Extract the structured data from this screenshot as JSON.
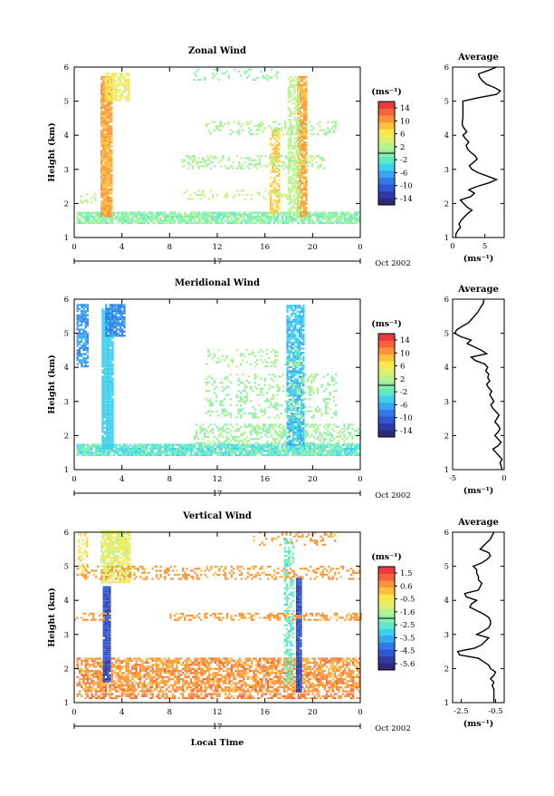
{
  "figure": {
    "xlabel": "Local Time",
    "xticks": [
      "0",
      "4",
      "8",
      "12",
      "16",
      "20",
      "0"
    ],
    "date_label": "17",
    "month_label": "Oct 2002",
    "unit_label": "(ms⁻¹)",
    "colormap": [
      "#2b2b7a",
      "#2e3aa8",
      "#2f57cf",
      "#2f7ae6",
      "#36a6ee",
      "#3fd0ee",
      "#5fe8c8",
      "#8cf0a8",
      "#baf28a",
      "#e0f06a",
      "#fbe64c",
      "#fdc03c",
      "#fb9436",
      "#f6633a",
      "#ea3a3f"
    ]
  },
  "chart_data": [
    {
      "type": "heatmap",
      "title": "Zonal Wind",
      "ylabel": "Height (km)",
      "xlim": [
        0,
        24
      ],
      "ylim": [
        1,
        6
      ],
      "yticks": [
        "1",
        "2",
        "3",
        "4",
        "5",
        "6"
      ],
      "colorbar": {
        "min": -15,
        "max": 15,
        "ticks": [
          "14",
          "10",
          "6",
          "2",
          "-2",
          "-6",
          "-10",
          "-14"
        ]
      },
      "profile": {
        "title": "Average",
        "xlim": [
          0,
          8
        ],
        "xticks": [
          "0",
          "5"
        ],
        "y": [
          1.0,
          1.1,
          1.2,
          1.3,
          1.4,
          1.5,
          1.6,
          1.7,
          1.8,
          1.9,
          2.0,
          2.1,
          2.2,
          2.3,
          2.4,
          2.5,
          2.6,
          2.7,
          2.8,
          2.9,
          3.0,
          3.1,
          3.2,
          3.3,
          3.4,
          3.5,
          3.6,
          3.7,
          3.8,
          3.9,
          4.0,
          4.1,
          4.2,
          4.3,
          4.4,
          4.5,
          4.6,
          4.7,
          4.8,
          4.9,
          5.0,
          5.1,
          5.2,
          5.3,
          5.4,
          5.5,
          5.6,
          5.7,
          5.8,
          5.9,
          6.0
        ],
        "values": [
          0.5,
          0.5,
          0.8,
          1.2,
          1.0,
          1.3,
          1.8,
          2.3,
          3.0,
          2.2,
          1.7,
          1.2,
          2.8,
          3.4,
          2.5,
          3.8,
          5.6,
          6.8,
          5.4,
          4.0,
          3.0,
          2.6,
          3.2,
          3.8,
          3.5,
          2.8,
          2.3,
          2.1,
          2.5,
          2.0,
          1.6,
          2.2,
          1.8,
          1.5,
          1.5,
          1.6,
          1.6,
          1.6,
          1.6,
          1.6,
          1.6,
          4.0,
          6.8,
          7.4,
          6.5,
          5.2,
          4.6,
          4.2,
          4.0,
          5.5,
          6.8
        ]
      }
    },
    {
      "type": "heatmap",
      "title": "Meridional Wind",
      "ylabel": "Height (km)",
      "xlim": [
        0,
        24
      ],
      "ylim": [
        1,
        6
      ],
      "yticks": [
        "1",
        "2",
        "3",
        "4",
        "5",
        "6"
      ],
      "colorbar": {
        "min": -15,
        "max": 15,
        "ticks": [
          "14",
          "10",
          "6",
          "2",
          "-2",
          "-6",
          "-10",
          "-14"
        ]
      },
      "profile": {
        "title": "Average",
        "xlim": [
          -5,
          0
        ],
        "xticks": [
          "-5",
          "0"
        ],
        "y": [
          1.0,
          1.1,
          1.2,
          1.3,
          1.4,
          1.5,
          1.6,
          1.7,
          1.8,
          1.9,
          2.0,
          2.1,
          2.2,
          2.3,
          2.4,
          2.5,
          2.6,
          2.7,
          2.8,
          2.9,
          3.0,
          3.1,
          3.2,
          3.3,
          3.4,
          3.5,
          3.6,
          3.7,
          3.8,
          3.9,
          4.0,
          4.1,
          4.2,
          4.3,
          4.4,
          4.5,
          4.6,
          4.7,
          4.8,
          4.9,
          5.0,
          5.1,
          5.2,
          5.3,
          5.4,
          5.5,
          5.6,
          5.7,
          5.8,
          5.9,
          6.0
        ],
        "values": [
          -0.2,
          -0.3,
          -0.4,
          -0.2,
          -0.5,
          -0.8,
          -1.1,
          -0.6,
          -0.3,
          -0.6,
          -0.9,
          -0.6,
          -0.4,
          -0.6,
          -0.9,
          -0.7,
          -0.5,
          -0.8,
          -1.1,
          -1.3,
          -1.0,
          -1.2,
          -1.4,
          -1.2,
          -1.5,
          -1.7,
          -1.4,
          -1.6,
          -1.5,
          -1.8,
          -1.6,
          -1.9,
          -2.8,
          -3.2,
          -1.7,
          -2.2,
          -2.9,
          -3.6,
          -3.2,
          -4.2,
          -4.8,
          -4.6,
          -4.1,
          -3.5,
          -3.2,
          -2.9,
          -2.6,
          -2.4,
          -2.2,
          -2.0,
          -2.0
        ]
      }
    },
    {
      "type": "heatmap",
      "title": "Vertical Wind",
      "ylabel": "Height (km)",
      "xlim": [
        0,
        24
      ],
      "ylim": [
        1,
        6
      ],
      "yticks": [
        "1",
        "2",
        "3",
        "4",
        "5",
        "6"
      ],
      "colorbar": {
        "min": -6,
        "max": 2,
        "ticks": [
          "1.5",
          "0.6",
          "-0.5",
          "-1.6",
          "-2.5",
          "-3.5",
          "-4.5",
          "-5.6"
        ]
      },
      "profile": {
        "title": "Average",
        "xlim": [
          -3,
          0
        ],
        "xticks": [
          "-2.5",
          "-0.5"
        ],
        "y": [
          1.0,
          1.1,
          1.2,
          1.3,
          1.4,
          1.5,
          1.6,
          1.7,
          1.8,
          1.9,
          2.0,
          2.1,
          2.2,
          2.3,
          2.4,
          2.5,
          2.6,
          2.7,
          2.8,
          2.9,
          3.0,
          3.1,
          3.2,
          3.3,
          3.4,
          3.5,
          3.6,
          3.7,
          3.8,
          3.9,
          4.0,
          4.1,
          4.2,
          4.3,
          4.4,
          4.5,
          4.6,
          4.7,
          4.8,
          4.9,
          5.0,
          5.1,
          5.2,
          5.3,
          5.4,
          5.5,
          5.6,
          5.7,
          5.8,
          5.9,
          6.0
        ],
        "values": [
          -0.6,
          -0.6,
          -0.6,
          -0.6,
          -0.6,
          -0.7,
          -0.6,
          -0.8,
          -0.6,
          -0.5,
          -0.8,
          -0.9,
          -1.2,
          -1.5,
          -2.6,
          -2.7,
          -1.7,
          -1.3,
          -1.1,
          -0.9,
          -1.6,
          -1.2,
          -0.9,
          -0.8,
          -0.8,
          -0.9,
          -1.2,
          -1.6,
          -2.0,
          -1.9,
          -1.6,
          -2.2,
          -2.3,
          -1.5,
          -1.4,
          -1.3,
          -1.5,
          -1.5,
          -1.6,
          -1.6,
          -1.8,
          -1.3,
          -1.0,
          -0.8,
          -0.9,
          -1.4,
          -1.2,
          -1.0,
          -0.8,
          -0.7,
          -0.6
        ]
      }
    }
  ]
}
